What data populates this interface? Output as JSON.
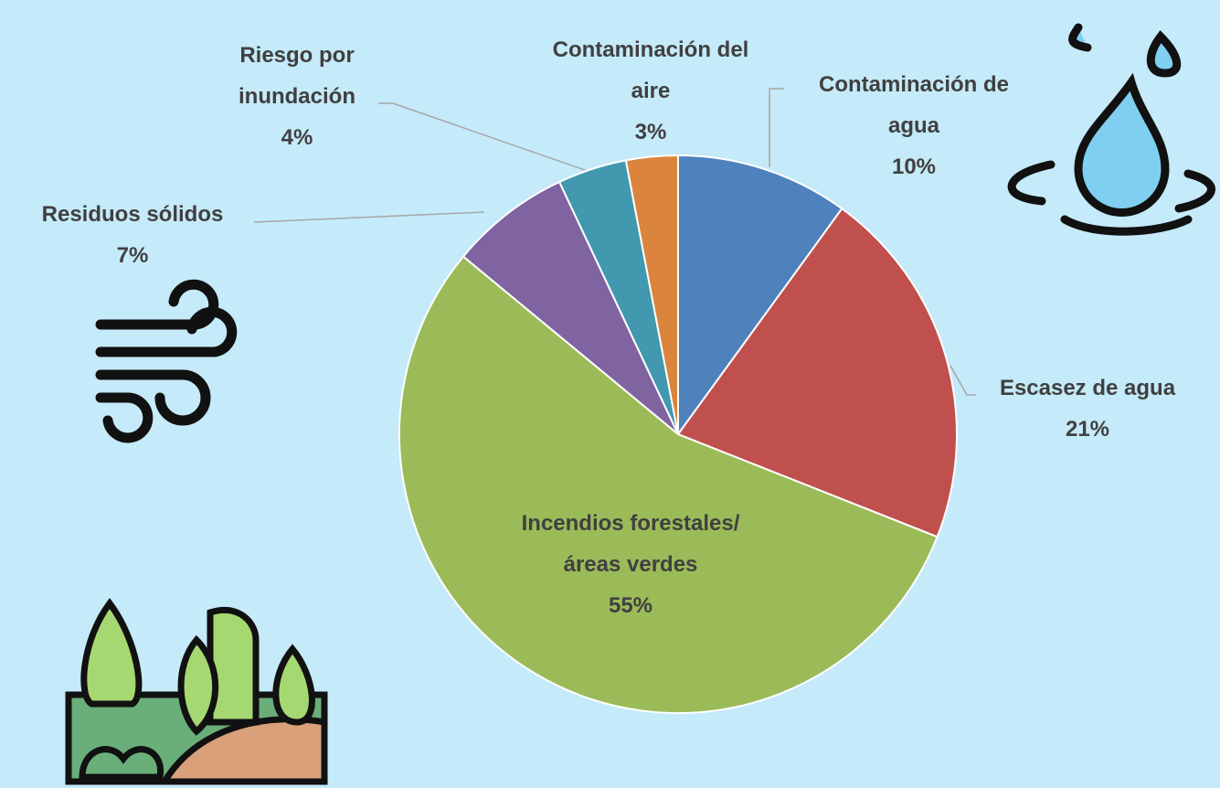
{
  "chart_data": {
    "type": "pie",
    "categories": [
      "Contaminación de agua",
      "Escasez de agua",
      "Incendios forestales/áreas verdes",
      "Residuos sólidos",
      "Riesgo por inundación",
      "Contaminación del aire"
    ],
    "values": [
      10,
      21,
      55,
      7,
      4,
      3
    ],
    "value_labels": [
      "10%",
      "21%",
      "55%",
      "7%",
      "4%",
      "3%"
    ],
    "colors": [
      "#4f81bd",
      "#c0504d",
      "#9bbb59",
      "#8064a2",
      "#4198af",
      "#db843d"
    ]
  }
}
